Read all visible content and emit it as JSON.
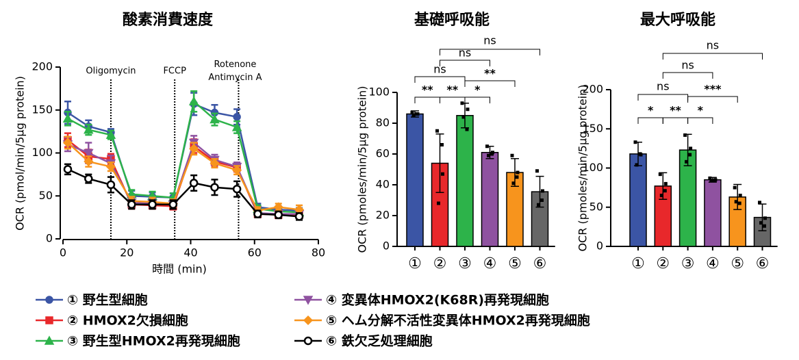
{
  "chart_data": [
    {
      "type": "line",
      "title": "酸素消費速度",
      "x_label": "時間 (min)",
      "y_label": "OCR (pmol/min/5μg protein)",
      "xlim": [
        0,
        80
      ],
      "xticks": [
        0,
        20,
        40,
        60,
        80
      ],
      "ylim": [
        0,
        200
      ],
      "yticks": [
        0,
        50,
        100,
        150,
        200
      ],
      "x": [
        1.5,
        8,
        15,
        21.5,
        28,
        34.5,
        41,
        47.5,
        54.5,
        61,
        67.5,
        74
      ],
      "annotations": [
        {
          "x": 15,
          "lines": [
            "Oligomycin"
          ]
        },
        {
          "x": 35,
          "lines": [
            "FCCP"
          ]
        },
        {
          "x": 55,
          "lines": [
            "Rotenone",
            "Antimycin A"
          ]
        }
      ],
      "series": [
        {
          "name": "① 野生型細胞",
          "color": "#3b55a5",
          "marker": "circle",
          "values": [
            147,
            131,
            124,
            50,
            49,
            48,
            157,
            147,
            142,
            37,
            34,
            33
          ],
          "errors": [
            13,
            7,
            4,
            6,
            5,
            5,
            13,
            9,
            9,
            4,
            4,
            3
          ]
        },
        {
          "name": "② HMOX2欠損細胞",
          "color": "#e8282b",
          "marker": "square",
          "values": [
            115,
            96,
            93,
            40,
            39,
            38,
            108,
            90,
            83,
            29,
            28,
            28
          ],
          "errors": [
            8,
            8,
            6,
            5,
            4,
            4,
            8,
            5,
            5,
            4,
            4,
            4
          ]
        },
        {
          "name": "③ 野生型HMOX2再発現細胞",
          "color": "#2db34a",
          "marker": "triangle",
          "values": [
            140,
            127,
            121,
            52,
            50,
            48,
            160,
            139,
            130,
            35,
            32,
            31
          ],
          "errors": [
            8,
            6,
            5,
            5,
            5,
            5,
            12,
            7,
            7,
            4,
            4,
            4
          ]
        },
        {
          "name": "④ 変異体HMOX2(K68R)再発現細胞",
          "color": "#8f52a0",
          "marker": "triangle-down",
          "values": [
            110,
            100,
            88,
            42,
            41,
            40,
            112,
            92,
            84,
            30,
            29,
            29
          ],
          "errors": [
            8,
            12,
            9,
            5,
            5,
            5,
            8,
            6,
            5,
            4,
            4,
            4
          ]
        },
        {
          "name": "⑤ ヘム分解不活性変異体HMOX2再発現細胞",
          "color": "#f7941d",
          "marker": "diamond",
          "values": [
            112,
            90,
            84,
            44,
            43,
            41,
            105,
            88,
            80,
            33,
            37,
            34
          ],
          "errors": [
            7,
            6,
            5,
            5,
            5,
            5,
            7,
            5,
            5,
            4,
            4,
            5
          ]
        },
        {
          "name": "⑥ 鉄欠乏処理細胞",
          "color": "#000000",
          "marker": "open-circle",
          "values": [
            81,
            70,
            63,
            40,
            40,
            40,
            65,
            60,
            58,
            29,
            28,
            26
          ],
          "errors": [
            6,
            5,
            9,
            5,
            5,
            5,
            9,
            9,
            9,
            4,
            4,
            4
          ]
        }
      ]
    },
    {
      "type": "bar",
      "title": "基礎呼吸能",
      "y_label": "OCR (pmoles/min/5μg protein)",
      "ylim": [
        0,
        100
      ],
      "yticks": [
        0,
        20,
        40,
        60,
        80,
        100
      ],
      "categories": [
        "①",
        "②",
        "③",
        "④",
        "⑤",
        "⑥"
      ],
      "colors": [
        "#3b55a5",
        "#e8282b",
        "#2db34a",
        "#8f52a0",
        "#f7941d",
        "#666666"
      ],
      "values": [
        86,
        54,
        85,
        61,
        48,
        35.5
      ],
      "errors": [
        2,
        19,
        8,
        4,
        9,
        10
      ],
      "points": [
        [
          87,
          86,
          85,
          86
        ],
        [
          75,
          47,
          28,
          66
        ],
        [
          93,
          89,
          84,
          76
        ],
        [
          65,
          61,
          59,
          60
        ],
        [
          59,
          48,
          41,
          45
        ],
        [
          49,
          36,
          27,
          30
        ]
      ],
      "brackets": [
        {
          "from": 0,
          "to": 1,
          "label": "**"
        },
        {
          "from": 1,
          "to": 2,
          "label": "**"
        },
        {
          "from": 2,
          "to": 3,
          "label": "*"
        },
        {
          "from": 2,
          "to": 4,
          "label": "**"
        },
        {
          "from": 0,
          "to": 2,
          "label": "ns"
        },
        {
          "from": 1,
          "to": 3,
          "label": "ns"
        },
        {
          "from": 1,
          "to": 5,
          "label": "ns"
        }
      ]
    },
    {
      "type": "bar",
      "title": "最大呼吸能",
      "y_label": "OCR (pmoles/min/5μg protein)",
      "ylim": [
        0,
        200
      ],
      "yticks": [
        0,
        50,
        100,
        150,
        200
      ],
      "categories": [
        "①",
        "②",
        "③",
        "④",
        "⑤",
        "⑥"
      ],
      "colors": [
        "#3b55a5",
        "#e8282b",
        "#2db34a",
        "#8f52a0",
        "#f7941d",
        "#666666"
      ],
      "values": [
        118,
        77,
        123,
        85,
        63,
        37
      ],
      "errors": [
        15,
        17,
        20,
        3,
        16,
        17
      ],
      "points": [
        [
          133,
          117,
          104,
          118
        ],
        [
          92,
          80,
          65,
          71
        ],
        [
          142,
          125,
          108,
          117
        ],
        [
          87,
          85,
          84,
          84
        ],
        [
          75,
          65,
          57,
          55
        ],
        [
          56,
          36,
          30,
          26
        ]
      ],
      "brackets": [
        {
          "from": 0,
          "to": 1,
          "label": "*"
        },
        {
          "from": 1,
          "to": 2,
          "label": "**"
        },
        {
          "from": 2,
          "to": 3,
          "label": "*"
        },
        {
          "from": 2,
          "to": 4,
          "label": "***"
        },
        {
          "from": 0,
          "to": 2,
          "label": "ns"
        },
        {
          "from": 1,
          "to": 3,
          "label": "ns"
        },
        {
          "from": 1,
          "to": 5,
          "label": "ns"
        }
      ]
    }
  ]
}
